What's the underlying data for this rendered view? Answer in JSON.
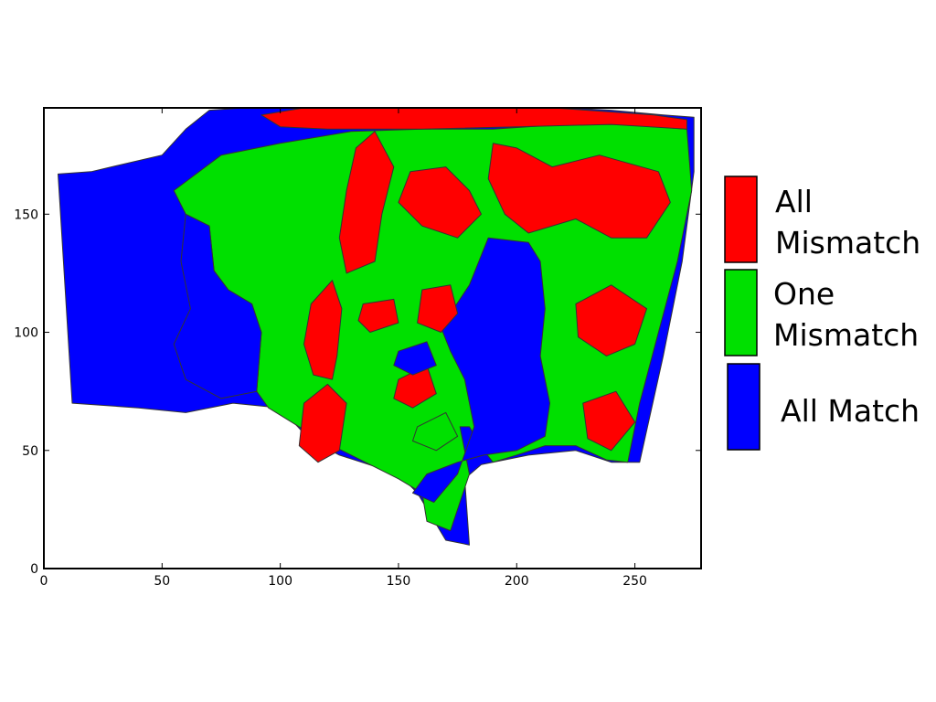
{
  "chart_data": {
    "type": "heatmap",
    "title": "",
    "xlabel": "",
    "ylabel": "",
    "xlim": [
      0,
      278
    ],
    "ylim": [
      0,
      195
    ],
    "x_ticks": [
      0,
      50,
      100,
      150,
      200,
      250
    ],
    "y_ticks": [
      0,
      50,
      100,
      150
    ],
    "x_tick_labels": [
      "0",
      "50",
      "100",
      "150",
      "200",
      "250"
    ],
    "y_tick_labels": [
      "0",
      "50",
      "100",
      "150"
    ],
    "grid": false,
    "legend_position": "right",
    "categories": [
      {
        "key": "all_mismatch",
        "label_lines": [
          "All",
          "Mismatch"
        ],
        "color": "#ff0000"
      },
      {
        "key": "one_mismatch",
        "label_lines": [
          "One",
          "Mismatch"
        ],
        "color": "#00e000"
      },
      {
        "key": "all_match",
        "label_lines": [
          "All Match"
        ],
        "color": "#0000ff"
      }
    ],
    "regions": [
      {
        "category": "all_match",
        "points": [
          [
            6,
            167
          ],
          [
            20,
            168
          ],
          [
            50,
            175
          ],
          [
            60,
            186
          ],
          [
            70,
            194
          ],
          [
            100,
            196
          ],
          [
            140,
            196
          ],
          [
            200,
            196
          ],
          [
            240,
            194
          ],
          [
            262,
            192
          ],
          [
            275,
            191
          ],
          [
            275,
            168
          ],
          [
            270,
            130
          ],
          [
            262,
            90
          ],
          [
            252,
            45
          ],
          [
            240,
            45
          ],
          [
            225,
            50
          ],
          [
            205,
            48
          ],
          [
            185,
            44
          ],
          [
            178,
            38
          ],
          [
            180,
            10
          ],
          [
            170,
            12
          ],
          [
            158,
            32
          ],
          [
            150,
            40
          ],
          [
            125,
            48
          ],
          [
            112,
            55
          ],
          [
            100,
            68
          ],
          [
            80,
            70
          ],
          [
            60,
            66
          ],
          [
            40,
            68
          ],
          [
            12,
            70
          ]
        ]
      },
      {
        "category": "one_mismatch",
        "points": [
          [
            55,
            160
          ],
          [
            75,
            175
          ],
          [
            100,
            180
          ],
          [
            130,
            185
          ],
          [
            160,
            186
          ],
          [
            190,
            186
          ],
          [
            220,
            188
          ],
          [
            245,
            188
          ],
          [
            272,
            186
          ],
          [
            274,
            160
          ],
          [
            268,
            130
          ],
          [
            260,
            100
          ],
          [
            252,
            70
          ],
          [
            247,
            45
          ],
          [
            238,
            46
          ],
          [
            225,
            52
          ],
          [
            212,
            52
          ],
          [
            200,
            48
          ],
          [
            190,
            45
          ],
          [
            186,
            50
          ],
          [
            180,
            60
          ],
          [
            176,
            60
          ],
          [
            180,
            40
          ],
          [
            172,
            16
          ],
          [
            162,
            20
          ],
          [
            160,
            32
          ],
          [
            150,
            38
          ],
          [
            130,
            48
          ],
          [
            118,
            54
          ],
          [
            108,
            60
          ],
          [
            95,
            68
          ],
          [
            90,
            75
          ],
          [
            92,
            100
          ],
          [
            88,
            112
          ],
          [
            78,
            118
          ],
          [
            72,
            126
          ],
          [
            70,
            145
          ],
          [
            60,
            150
          ]
        ]
      },
      {
        "category": "all_match",
        "points": [
          [
            60,
            150
          ],
          [
            70,
            145
          ],
          [
            72,
            126
          ],
          [
            78,
            118
          ],
          [
            88,
            112
          ],
          [
            92,
            100
          ],
          [
            90,
            75
          ],
          [
            75,
            72
          ],
          [
            60,
            80
          ],
          [
            55,
            95
          ],
          [
            62,
            110
          ],
          [
            58,
            130
          ]
        ]
      },
      {
        "category": "all_match",
        "points": [
          [
            188,
            140
          ],
          [
            205,
            138
          ],
          [
            210,
            130
          ],
          [
            212,
            110
          ],
          [
            210,
            90
          ],
          [
            214,
            70
          ],
          [
            212,
            56
          ],
          [
            200,
            50
          ],
          [
            186,
            48
          ],
          [
            175,
            45
          ],
          [
            162,
            40
          ],
          [
            156,
            32
          ],
          [
            165,
            28
          ],
          [
            175,
            40
          ],
          [
            182,
            60
          ],
          [
            178,
            80
          ],
          [
            172,
            92
          ],
          [
            168,
            102
          ],
          [
            180,
            120
          ]
        ]
      },
      {
        "category": "all_mismatch",
        "points": [
          [
            92,
            192
          ],
          [
            110,
            195
          ],
          [
            140,
            195
          ],
          [
            180,
            196
          ],
          [
            200,
            196
          ],
          [
            230,
            194
          ],
          [
            258,
            192
          ],
          [
            272,
            190
          ],
          [
            272,
            186
          ],
          [
            240,
            188
          ],
          [
            200,
            187
          ],
          [
            160,
            186
          ],
          [
            120,
            186
          ],
          [
            100,
            187
          ]
        ]
      },
      {
        "category": "all_mismatch",
        "points": [
          [
            140,
            185
          ],
          [
            148,
            170
          ],
          [
            143,
            150
          ],
          [
            140,
            130
          ],
          [
            128,
            125
          ],
          [
            125,
            140
          ],
          [
            128,
            160
          ],
          [
            132,
            178
          ]
        ]
      },
      {
        "category": "all_mismatch",
        "points": [
          [
            190,
            180
          ],
          [
            200,
            178
          ],
          [
            215,
            170
          ],
          [
            235,
            175
          ],
          [
            260,
            168
          ],
          [
            265,
            155
          ],
          [
            255,
            140
          ],
          [
            240,
            140
          ],
          [
            225,
            148
          ],
          [
            205,
            142
          ],
          [
            195,
            150
          ],
          [
            188,
            165
          ]
        ]
      },
      {
        "category": "all_mismatch",
        "points": [
          [
            155,
            168
          ],
          [
            170,
            170
          ],
          [
            180,
            160
          ],
          [
            185,
            150
          ],
          [
            175,
            140
          ],
          [
            160,
            145
          ],
          [
            150,
            155
          ]
        ]
      },
      {
        "category": "all_mismatch",
        "points": [
          [
            113,
            112
          ],
          [
            122,
            122
          ],
          [
            126,
            110
          ],
          [
            124,
            90
          ],
          [
            122,
            80
          ],
          [
            114,
            82
          ],
          [
            110,
            95
          ]
        ]
      },
      {
        "category": "all_mismatch",
        "points": [
          [
            135,
            112
          ],
          [
            148,
            114
          ],
          [
            150,
            104
          ],
          [
            138,
            100
          ],
          [
            133,
            105
          ]
        ]
      },
      {
        "category": "all_mismatch",
        "points": [
          [
            160,
            118
          ],
          [
            172,
            120
          ],
          [
            175,
            108
          ],
          [
            168,
            100
          ],
          [
            158,
            104
          ]
        ]
      },
      {
        "category": "all_mismatch",
        "points": [
          [
            225,
            112
          ],
          [
            240,
            120
          ],
          [
            255,
            110
          ],
          [
            250,
            95
          ],
          [
            238,
            90
          ],
          [
            226,
            98
          ]
        ]
      },
      {
        "category": "all_mismatch",
        "points": [
          [
            228,
            70
          ],
          [
            242,
            75
          ],
          [
            250,
            62
          ],
          [
            240,
            50
          ],
          [
            230,
            55
          ]
        ]
      },
      {
        "category": "all_mismatch",
        "points": [
          [
            110,
            70
          ],
          [
            120,
            78
          ],
          [
            128,
            70
          ],
          [
            125,
            50
          ],
          [
            116,
            45
          ],
          [
            108,
            52
          ]
        ]
      },
      {
        "category": "all_mismatch",
        "points": [
          [
            150,
            80
          ],
          [
            162,
            86
          ],
          [
            166,
            74
          ],
          [
            156,
            68
          ],
          [
            148,
            72
          ]
        ]
      },
      {
        "category": "all_match",
        "points": [
          [
            150,
            92
          ],
          [
            162,
            96
          ],
          [
            166,
            86
          ],
          [
            156,
            82
          ],
          [
            148,
            86
          ]
        ]
      },
      {
        "category": "one_mismatch",
        "points": [
          [
            158,
            60
          ],
          [
            170,
            66
          ],
          [
            175,
            56
          ],
          [
            166,
            50
          ],
          [
            156,
            54
          ]
        ]
      }
    ]
  }
}
